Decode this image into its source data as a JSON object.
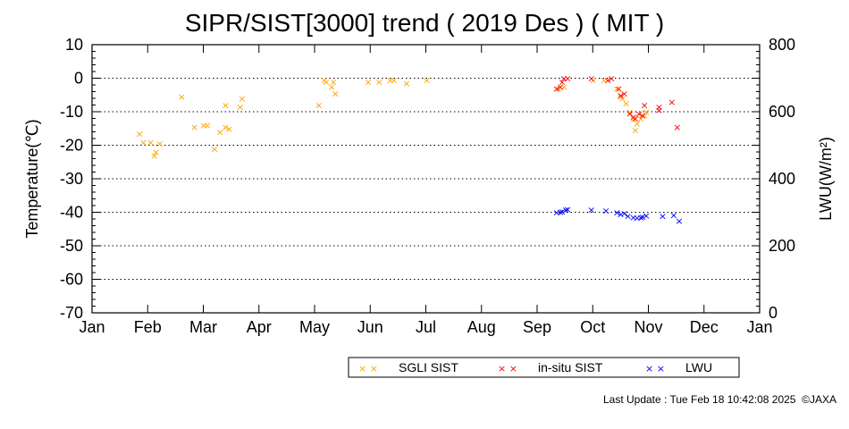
{
  "chart_data": {
    "type": "scatter",
    "title": "SIPR/SIST[3000] trend ( 2019 Des ) ( MIT )",
    "xlabel": "",
    "ylabel": "Temperature(℃)",
    "y2label": "LWU(W/m²)",
    "x_ticks": [
      "Jan",
      "Feb",
      "Mar",
      "Apr",
      "May",
      "Jun",
      "Jul",
      "Aug",
      "Sep",
      "Oct",
      "Nov",
      "Dec",
      "Jan"
    ],
    "xlim": [
      0,
      365
    ],
    "ylim": [
      -70,
      10
    ],
    "y_ticks": [
      10,
      0,
      -10,
      -20,
      -30,
      -40,
      -50,
      -60,
      -70
    ],
    "y2lim": [
      0,
      800
    ],
    "y2_ticks": [
      800,
      600,
      400,
      200,
      0
    ],
    "grid": "horizontal-dotted",
    "legend_position": "bottom-right",
    "series": [
      {
        "name": "SGLI SIST",
        "axis": "left",
        "color": "#ffa500",
        "marker": "×",
        "points": [
          [
            26,
            -16.5
          ],
          [
            28,
            -19
          ],
          [
            32,
            -19
          ],
          [
            34,
            -23
          ],
          [
            35,
            -22
          ],
          [
            37,
            -19.5
          ],
          [
            49,
            -5.5
          ],
          [
            56,
            -14.5
          ],
          [
            61,
            -14
          ],
          [
            63,
            -14
          ],
          [
            67,
            -21
          ],
          [
            70,
            -16
          ],
          [
            73,
            -14.5
          ],
          [
            73,
            -8
          ],
          [
            75,
            -15
          ],
          [
            81,
            -8.5
          ],
          [
            82,
            -6
          ],
          [
            124,
            -8
          ],
          [
            127,
            -0.5
          ],
          [
            128,
            -1
          ],
          [
            131,
            -2.5
          ],
          [
            132,
            -1
          ],
          [
            133,
            -4.5
          ],
          [
            151,
            -1
          ],
          [
            157,
            -1
          ],
          [
            163,
            -0.5
          ],
          [
            165,
            -0.5
          ],
          [
            172,
            -1.5
          ],
          [
            183,
            -0.5
          ],
          [
            255,
            -3
          ],
          [
            258,
            -2.5
          ],
          [
            274,
            -0.5
          ],
          [
            280,
            -0.5
          ],
          [
            287,
            -3
          ],
          [
            289,
            -5.5
          ],
          [
            290,
            -6
          ],
          [
            292,
            -7.5
          ],
          [
            294,
            -10
          ],
          [
            296,
            -12
          ],
          [
            297,
            -15.5
          ],
          [
            298,
            -13.5
          ],
          [
            300,
            -12
          ],
          [
            302,
            -11
          ],
          [
            303,
            -10
          ]
        ]
      },
      {
        "name": "in-situ SIST",
        "axis": "left",
        "color": "#ff0000",
        "marker": "×",
        "points": [
          [
            254,
            -3
          ],
          [
            256,
            -2.5
          ],
          [
            257,
            -1
          ],
          [
            258,
            0
          ],
          [
            260,
            0
          ],
          [
            273,
            0
          ],
          [
            282,
            -0.5
          ],
          [
            284,
            0
          ],
          [
            288,
            -3
          ],
          [
            289,
            -5
          ],
          [
            291,
            -4.5
          ],
          [
            294,
            -10.5
          ],
          [
            296,
            -11.5
          ],
          [
            297,
            -12
          ],
          [
            299,
            -10.5
          ],
          [
            301,
            -11
          ],
          [
            302,
            -8
          ],
          [
            310,
            -9.5
          ],
          [
            310,
            -8.5
          ],
          [
            317,
            -7
          ],
          [
            320,
            -14.5
          ]
        ]
      },
      {
        "name": "LWU",
        "axis": "right",
        "color": "#0000ff",
        "marker": "×",
        "points": [
          [
            254,
            300
          ],
          [
            256,
            302
          ],
          [
            257,
            303
          ],
          [
            259,
            308
          ],
          [
            260,
            309
          ],
          [
            273,
            308
          ],
          [
            281,
            306
          ],
          [
            287,
            300
          ],
          [
            289,
            295
          ],
          [
            291,
            297
          ],
          [
            293,
            289
          ],
          [
            296,
            286
          ],
          [
            298,
            284
          ],
          [
            300,
            285
          ],
          [
            301,
            287
          ],
          [
            303,
            291
          ],
          [
            312,
            290
          ],
          [
            318,
            292
          ],
          [
            321,
            275
          ]
        ]
      }
    ]
  },
  "footer": {
    "last_update": "Last Update : Tue Feb 18 10:42:08 2025",
    "copyright": "©JAXA"
  }
}
